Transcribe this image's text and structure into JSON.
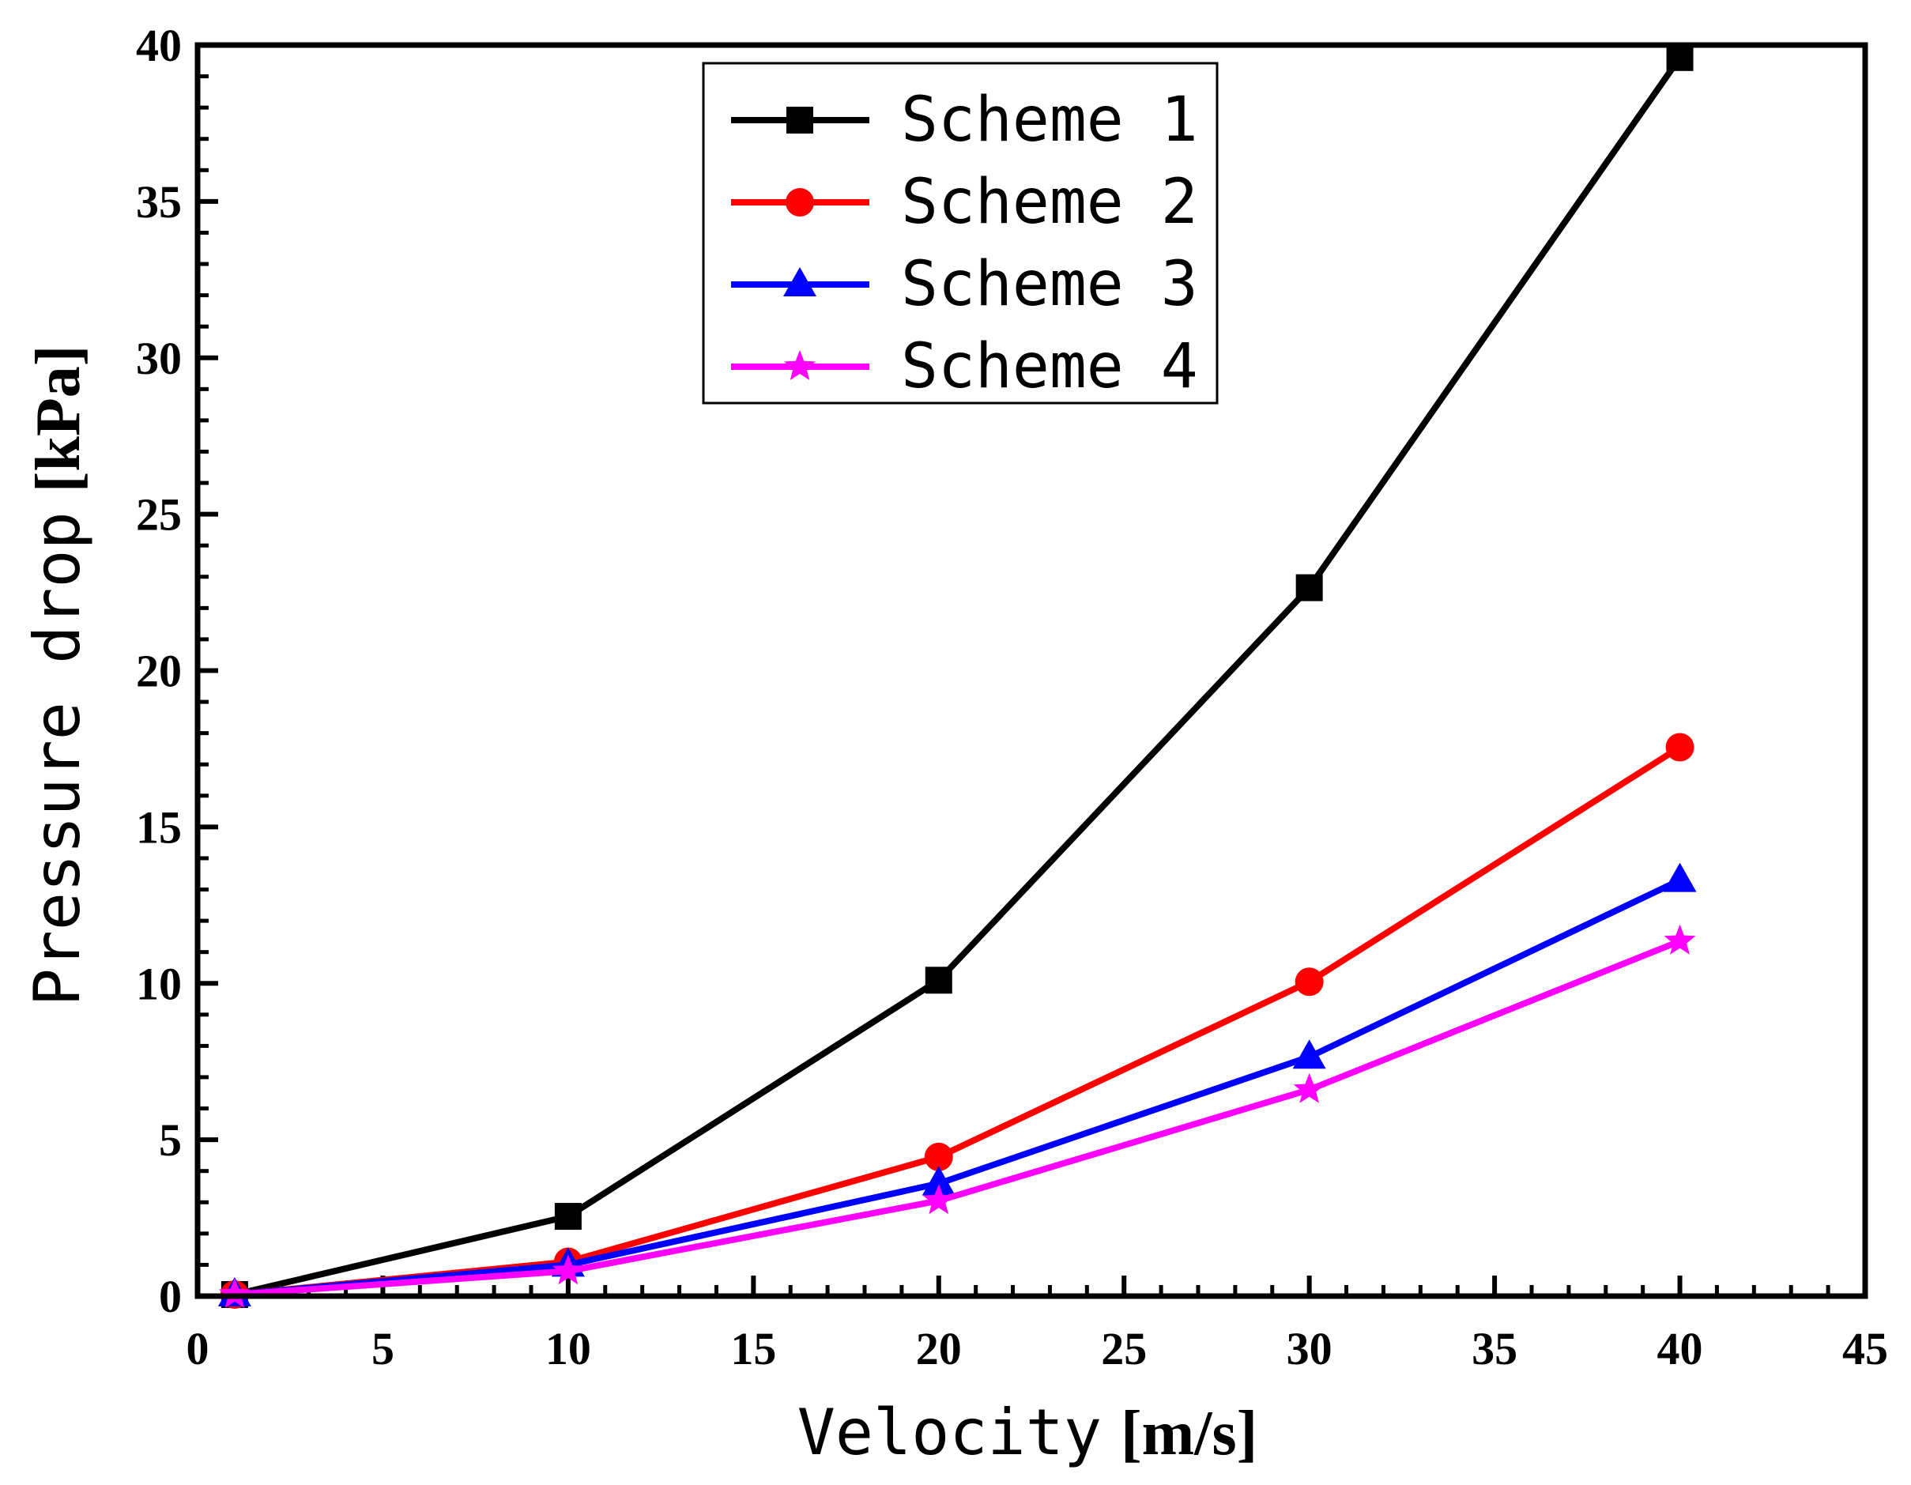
{
  "chart_data": {
    "type": "line",
    "xlabel": "Velocity",
    "xlabel_unit": "[m/s]",
    "ylabel": "Pressure drop",
    "ylabel_unit": "[kPa]",
    "xlim": [
      0,
      45
    ],
    "ylim": [
      0,
      40
    ],
    "xticks": [
      "0",
      "5",
      "10",
      "15",
      "20",
      "25",
      "30",
      "35",
      "40",
      "45"
    ],
    "yticks": [
      "0",
      "5",
      "10",
      "15",
      "20",
      "25",
      "30",
      "35",
      "40"
    ],
    "legend_position": "top-center",
    "grid": false,
    "x": [
      1,
      10,
      20,
      30,
      40
    ],
    "series": [
      {
        "name": "Scheme 1",
        "color": "#000000",
        "marker": "square",
        "values": [
          0.05,
          2.55,
          10.1,
          22.65,
          39.6
        ]
      },
      {
        "name": "Scheme 2",
        "color": "#ff0000",
        "marker": "circle",
        "values": [
          0.05,
          1.1,
          4.45,
          10.05,
          17.55
        ]
      },
      {
        "name": "Scheme 3",
        "color": "#0000ff",
        "marker": "triangle",
        "values": [
          0.05,
          1.0,
          3.6,
          7.65,
          13.3
        ]
      },
      {
        "name": "Scheme 4",
        "color": "#ff00ff",
        "marker": "star",
        "values": [
          0.05,
          0.8,
          3.05,
          6.6,
          11.35
        ]
      }
    ]
  }
}
